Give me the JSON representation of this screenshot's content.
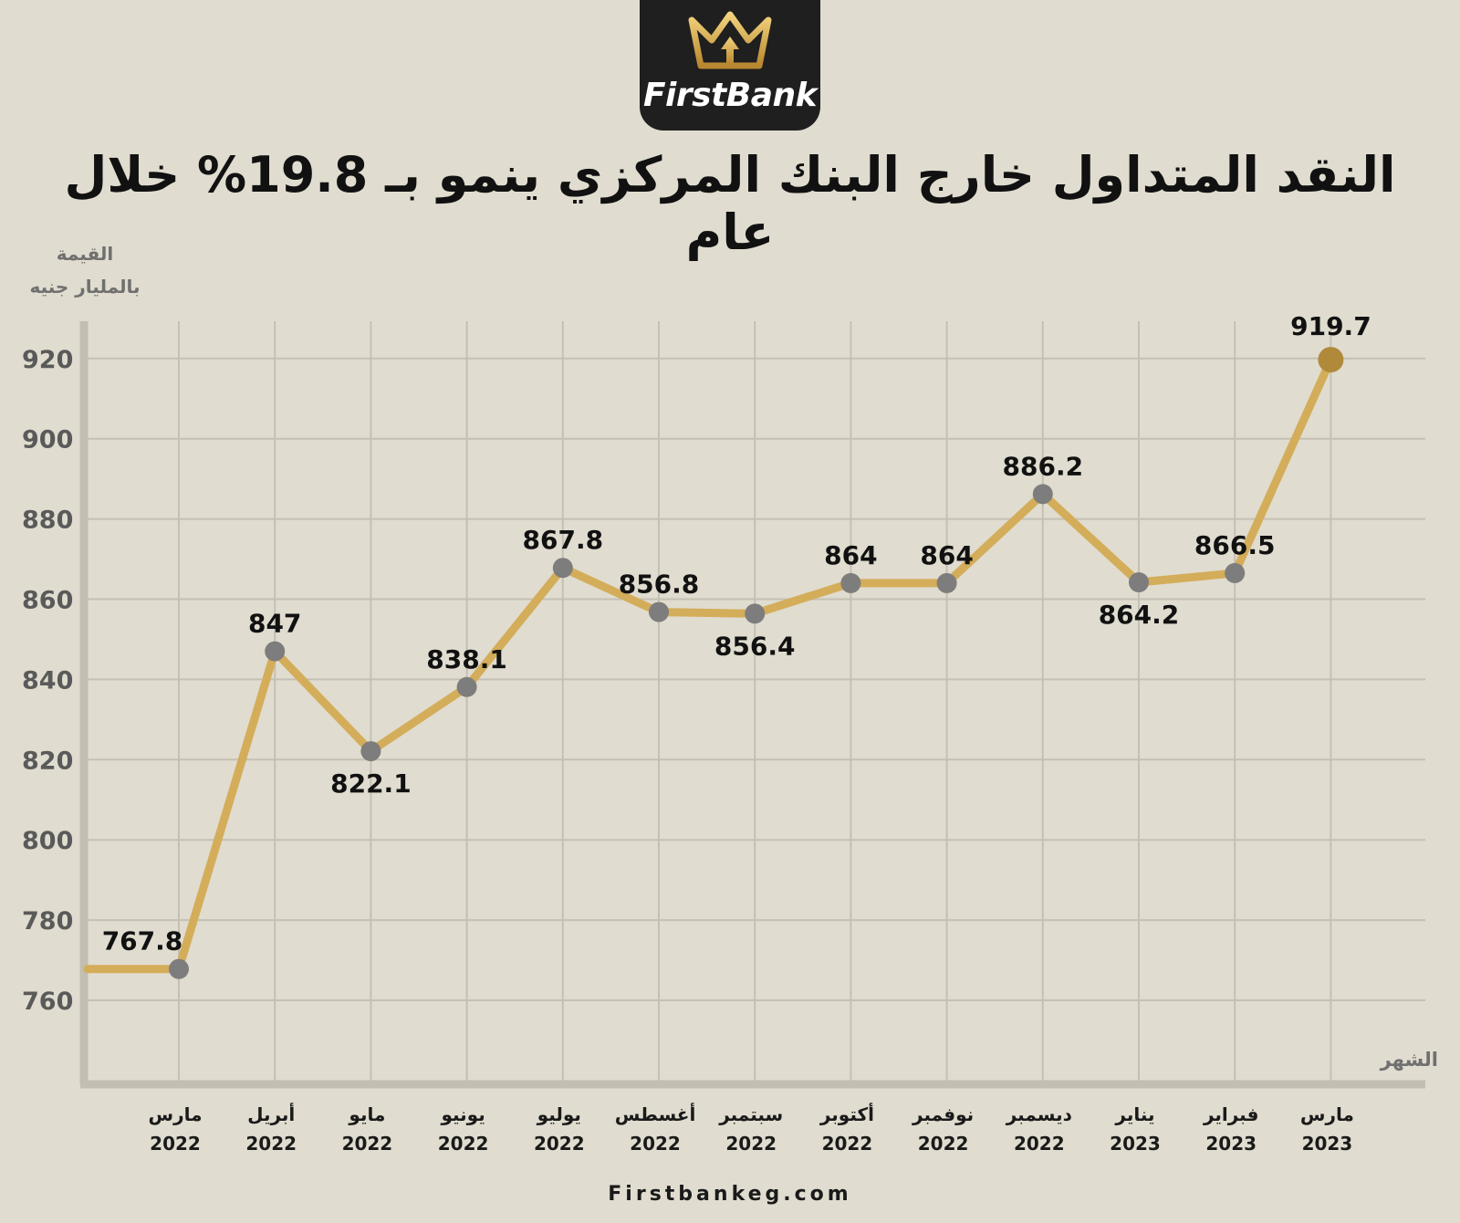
{
  "brand": {
    "name": "FirstBank",
    "logo_icon": "crown-icon",
    "gold": "#c9a24a"
  },
  "header": {
    "title": "النقد المتداول خارج البنك المركزي ينمو بـ 19.8% خلال عام"
  },
  "footer": {
    "website": "Firstbankeg.com"
  },
  "chart_data": {
    "type": "line",
    "title": "النقد المتداول خارج البنك المركزي ينمو بـ 19.8% خلال عام",
    "ylabel": [
      "القيمة",
      "بالمليار جنيه"
    ],
    "xlabel": "الشهر",
    "ylim": [
      740,
      930
    ],
    "yticks": [
      760,
      780,
      800,
      820,
      840,
      860,
      880,
      900,
      920
    ],
    "grid": true,
    "line_color": "#d4ad5a",
    "marker_color": "#7d7d7d",
    "highlight_color": "#b08a3a",
    "categories": [
      [
        "مارس",
        "2022"
      ],
      [
        "أبريل",
        "2022"
      ],
      [
        "مايو",
        "2022"
      ],
      [
        "يونيو",
        "2022"
      ],
      [
        "يوليو",
        "2022"
      ],
      [
        "أغسطس",
        "2022"
      ],
      [
        "سبتمبر",
        "2022"
      ],
      [
        "أكتوبر",
        "2022"
      ],
      [
        "نوفمبر",
        "2022"
      ],
      [
        "ديسمبر",
        "2022"
      ],
      [
        "يناير",
        "2023"
      ],
      [
        "فبراير",
        "2023"
      ],
      [
        "مارس",
        "2023"
      ]
    ],
    "values": [
      767.8,
      847,
      822.1,
      838.1,
      867.8,
      856.8,
      856.4,
      864,
      864,
      886.2,
      864.2,
      866.5,
      919.7
    ],
    "labels": [
      "767.8",
      "847",
      "822.1",
      "838.1",
      "867.8",
      "856.8",
      "856.4",
      "864",
      "864",
      "886.2",
      "864.2",
      "866.5",
      "919.7"
    ],
    "label_positions": [
      "above",
      "above",
      "below",
      "above",
      "above",
      "above",
      "below",
      "above",
      "above",
      "above",
      "below",
      "above",
      "above"
    ]
  }
}
